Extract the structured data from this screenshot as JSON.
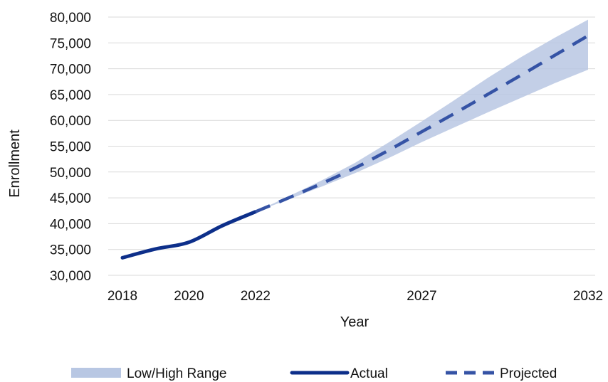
{
  "chart_data": {
    "type": "line",
    "title": "",
    "xlabel": "Year",
    "ylabel": "Enrollment",
    "xlim": [
      2018,
      2032
    ],
    "ylim": [
      30000,
      80000
    ],
    "x_ticks": [
      2018,
      2020,
      2022,
      2027,
      2032
    ],
    "y_ticks": [
      30000,
      35000,
      40000,
      45000,
      50000,
      55000,
      60000,
      65000,
      70000,
      75000,
      80000
    ],
    "y_tick_labels": [
      "30,000",
      "35,000",
      "40,000",
      "45,000",
      "50,000",
      "55,000",
      "60,000",
      "65,000",
      "70,000",
      "75,000",
      "80,000"
    ],
    "x_tick_labels": [
      "2018",
      "2020",
      "2022",
      "2027",
      "2032"
    ],
    "grid": "horizontal",
    "legend_position": "bottom",
    "series": [
      {
        "name": "Actual",
        "style": "solid",
        "color": "#0d2f8a",
        "x": [
          2018,
          2019,
          2020,
          2021,
          2022
        ],
        "y": [
          33400,
          35100,
          36400,
          39600,
          42300
        ]
      },
      {
        "name": "Projected",
        "style": "dashed",
        "color": "#3553a5",
        "x": [
          2022,
          2023,
          2024,
          2025,
          2026,
          2027,
          2028,
          2029,
          2030,
          2031,
          2032
        ],
        "y": [
          42300,
          45000,
          47800,
          50800,
          54200,
          57800,
          61400,
          65100,
          68800,
          72600,
          76400
        ]
      }
    ],
    "range": {
      "name": "Low/High Range",
      "color": "#b8c7e3",
      "x": [
        2022,
        2023,
        2024,
        2025,
        2026,
        2027,
        2028,
        2029,
        2030,
        2031,
        2032
      ],
      "low": [
        42300,
        44700,
        47200,
        49800,
        52700,
        55800,
        58700,
        61600,
        64400,
        67200,
        69800
      ],
      "high": [
        42300,
        45300,
        48400,
        51800,
        55700,
        59800,
        64000,
        68300,
        72300,
        76000,
        79500
      ]
    }
  }
}
